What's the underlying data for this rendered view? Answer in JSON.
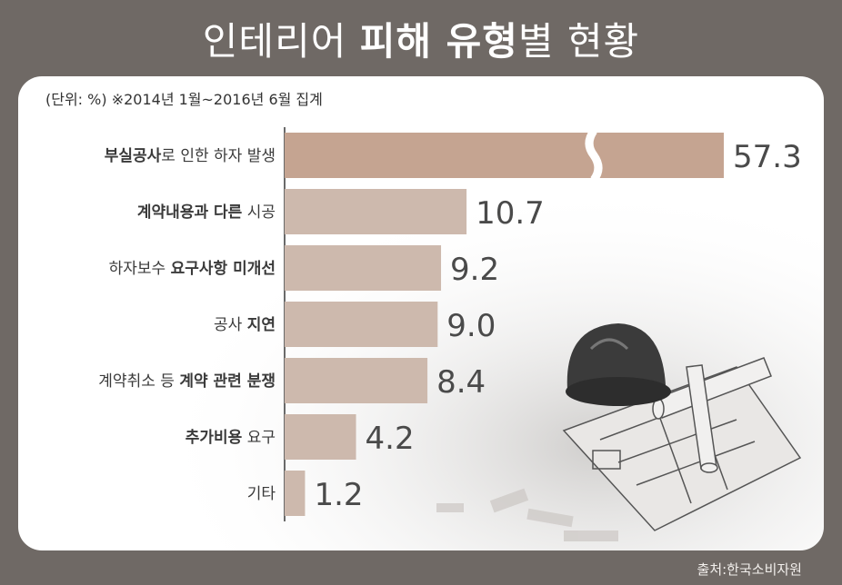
{
  "title": {
    "part1": "인테리어 ",
    "part2": "피해 유형",
    "part3": "별 현황"
  },
  "unit_note": "(단위: %) ※2014년 1월~2016년 6월 집계",
  "source": "출처:한국소비자원",
  "colors": {
    "background": "#6f6965",
    "bar_first": "#c5a491",
    "bar_other": "#cdb9ad",
    "axis": "#6a6a6a"
  },
  "chart_data": {
    "type": "bar",
    "orientation": "horizontal",
    "title": "인테리어 피해 유형별 현황",
    "unit": "%",
    "axis_break_on_first_bar": true,
    "categories": [
      [
        {
          "t": "부실공사",
          "b": true
        },
        {
          "t": "로 인한 하자 발생",
          "b": false
        }
      ],
      [
        {
          "t": "계약내용과 다른",
          "b": true
        },
        {
          "t": " 시공",
          "b": false
        }
      ],
      [
        {
          "t": "하자보수 ",
          "b": false
        },
        {
          "t": "요구사항 미개선",
          "b": true
        }
      ],
      [
        {
          "t": "공사 ",
          "b": false
        },
        {
          "t": "지연",
          "b": true
        }
      ],
      [
        {
          "t": "계약취소 등 ",
          "b": false
        },
        {
          "t": "계약 관련 분쟁",
          "b": true
        }
      ],
      [
        {
          "t": "추가비용",
          "b": true
        },
        {
          "t": " 요구",
          "b": false
        }
      ],
      [
        {
          "t": "기타",
          "b": false
        }
      ]
    ],
    "values": [
      57.3,
      10.7,
      9.2,
      9.0,
      8.4,
      4.2,
      1.2
    ],
    "value_labels": [
      "57.3",
      "10.7",
      "9.2",
      "9.0",
      "8.4",
      "4.2",
      "1.2"
    ]
  }
}
